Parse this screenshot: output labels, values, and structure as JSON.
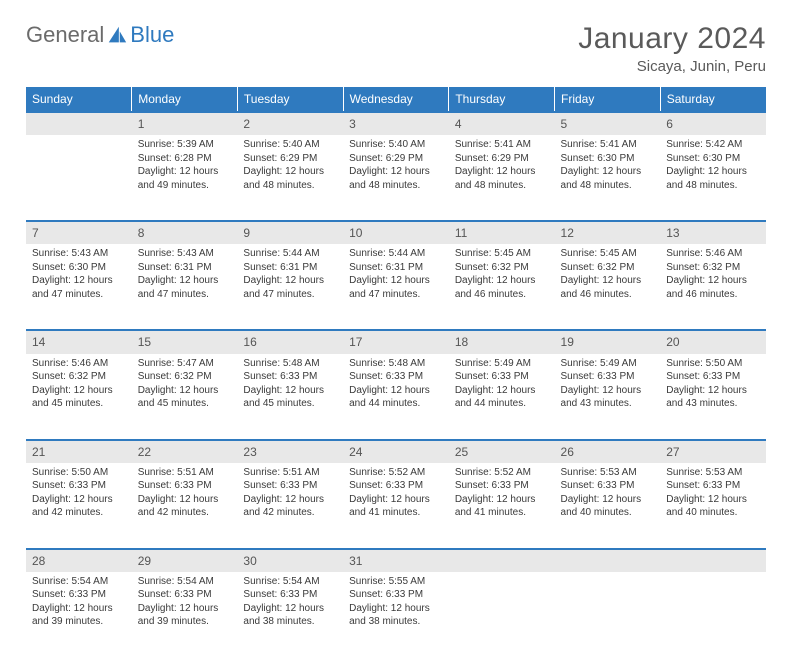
{
  "brand": {
    "part1": "General",
    "part2": "Blue"
  },
  "title": "January 2024",
  "location": "Sicaya, Junin, Peru",
  "colors": {
    "header_bg": "#2f7abf",
    "header_text": "#ffffff",
    "daynum_bg": "#e8e8e8",
    "body_text": "#3a3a3a",
    "border": "#2f7abf",
    "background": "#ffffff"
  },
  "day_headers": [
    "Sunday",
    "Monday",
    "Tuesday",
    "Wednesday",
    "Thursday",
    "Friday",
    "Saturday"
  ],
  "weeks": [
    {
      "nums": [
        "",
        "1",
        "2",
        "3",
        "4",
        "5",
        "6"
      ],
      "cells": [
        null,
        {
          "sunrise": "Sunrise: 5:39 AM",
          "sunset": "Sunset: 6:28 PM",
          "d1": "Daylight: 12 hours",
          "d2": "and 49 minutes."
        },
        {
          "sunrise": "Sunrise: 5:40 AM",
          "sunset": "Sunset: 6:29 PM",
          "d1": "Daylight: 12 hours",
          "d2": "and 48 minutes."
        },
        {
          "sunrise": "Sunrise: 5:40 AM",
          "sunset": "Sunset: 6:29 PM",
          "d1": "Daylight: 12 hours",
          "d2": "and 48 minutes."
        },
        {
          "sunrise": "Sunrise: 5:41 AM",
          "sunset": "Sunset: 6:29 PM",
          "d1": "Daylight: 12 hours",
          "d2": "and 48 minutes."
        },
        {
          "sunrise": "Sunrise: 5:41 AM",
          "sunset": "Sunset: 6:30 PM",
          "d1": "Daylight: 12 hours",
          "d2": "and 48 minutes."
        },
        {
          "sunrise": "Sunrise: 5:42 AM",
          "sunset": "Sunset: 6:30 PM",
          "d1": "Daylight: 12 hours",
          "d2": "and 48 minutes."
        }
      ]
    },
    {
      "nums": [
        "7",
        "8",
        "9",
        "10",
        "11",
        "12",
        "13"
      ],
      "cells": [
        {
          "sunrise": "Sunrise: 5:43 AM",
          "sunset": "Sunset: 6:30 PM",
          "d1": "Daylight: 12 hours",
          "d2": "and 47 minutes."
        },
        {
          "sunrise": "Sunrise: 5:43 AM",
          "sunset": "Sunset: 6:31 PM",
          "d1": "Daylight: 12 hours",
          "d2": "and 47 minutes."
        },
        {
          "sunrise": "Sunrise: 5:44 AM",
          "sunset": "Sunset: 6:31 PM",
          "d1": "Daylight: 12 hours",
          "d2": "and 47 minutes."
        },
        {
          "sunrise": "Sunrise: 5:44 AM",
          "sunset": "Sunset: 6:31 PM",
          "d1": "Daylight: 12 hours",
          "d2": "and 47 minutes."
        },
        {
          "sunrise": "Sunrise: 5:45 AM",
          "sunset": "Sunset: 6:32 PM",
          "d1": "Daylight: 12 hours",
          "d2": "and 46 minutes."
        },
        {
          "sunrise": "Sunrise: 5:45 AM",
          "sunset": "Sunset: 6:32 PM",
          "d1": "Daylight: 12 hours",
          "d2": "and 46 minutes."
        },
        {
          "sunrise": "Sunrise: 5:46 AM",
          "sunset": "Sunset: 6:32 PM",
          "d1": "Daylight: 12 hours",
          "d2": "and 46 minutes."
        }
      ]
    },
    {
      "nums": [
        "14",
        "15",
        "16",
        "17",
        "18",
        "19",
        "20"
      ],
      "cells": [
        {
          "sunrise": "Sunrise: 5:46 AM",
          "sunset": "Sunset: 6:32 PM",
          "d1": "Daylight: 12 hours",
          "d2": "and 45 minutes."
        },
        {
          "sunrise": "Sunrise: 5:47 AM",
          "sunset": "Sunset: 6:32 PM",
          "d1": "Daylight: 12 hours",
          "d2": "and 45 minutes."
        },
        {
          "sunrise": "Sunrise: 5:48 AM",
          "sunset": "Sunset: 6:33 PM",
          "d1": "Daylight: 12 hours",
          "d2": "and 45 minutes."
        },
        {
          "sunrise": "Sunrise: 5:48 AM",
          "sunset": "Sunset: 6:33 PM",
          "d1": "Daylight: 12 hours",
          "d2": "and 44 minutes."
        },
        {
          "sunrise": "Sunrise: 5:49 AM",
          "sunset": "Sunset: 6:33 PM",
          "d1": "Daylight: 12 hours",
          "d2": "and 44 minutes."
        },
        {
          "sunrise": "Sunrise: 5:49 AM",
          "sunset": "Sunset: 6:33 PM",
          "d1": "Daylight: 12 hours",
          "d2": "and 43 minutes."
        },
        {
          "sunrise": "Sunrise: 5:50 AM",
          "sunset": "Sunset: 6:33 PM",
          "d1": "Daylight: 12 hours",
          "d2": "and 43 minutes."
        }
      ]
    },
    {
      "nums": [
        "21",
        "22",
        "23",
        "24",
        "25",
        "26",
        "27"
      ],
      "cells": [
        {
          "sunrise": "Sunrise: 5:50 AM",
          "sunset": "Sunset: 6:33 PM",
          "d1": "Daylight: 12 hours",
          "d2": "and 42 minutes."
        },
        {
          "sunrise": "Sunrise: 5:51 AM",
          "sunset": "Sunset: 6:33 PM",
          "d1": "Daylight: 12 hours",
          "d2": "and 42 minutes."
        },
        {
          "sunrise": "Sunrise: 5:51 AM",
          "sunset": "Sunset: 6:33 PM",
          "d1": "Daylight: 12 hours",
          "d2": "and 42 minutes."
        },
        {
          "sunrise": "Sunrise: 5:52 AM",
          "sunset": "Sunset: 6:33 PM",
          "d1": "Daylight: 12 hours",
          "d2": "and 41 minutes."
        },
        {
          "sunrise": "Sunrise: 5:52 AM",
          "sunset": "Sunset: 6:33 PM",
          "d1": "Daylight: 12 hours",
          "d2": "and 41 minutes."
        },
        {
          "sunrise": "Sunrise: 5:53 AM",
          "sunset": "Sunset: 6:33 PM",
          "d1": "Daylight: 12 hours",
          "d2": "and 40 minutes."
        },
        {
          "sunrise": "Sunrise: 5:53 AM",
          "sunset": "Sunset: 6:33 PM",
          "d1": "Daylight: 12 hours",
          "d2": "and 40 minutes."
        }
      ]
    },
    {
      "nums": [
        "28",
        "29",
        "30",
        "31",
        "",
        "",
        ""
      ],
      "cells": [
        {
          "sunrise": "Sunrise: 5:54 AM",
          "sunset": "Sunset: 6:33 PM",
          "d1": "Daylight: 12 hours",
          "d2": "and 39 minutes."
        },
        {
          "sunrise": "Sunrise: 5:54 AM",
          "sunset": "Sunset: 6:33 PM",
          "d1": "Daylight: 12 hours",
          "d2": "and 39 minutes."
        },
        {
          "sunrise": "Sunrise: 5:54 AM",
          "sunset": "Sunset: 6:33 PM",
          "d1": "Daylight: 12 hours",
          "d2": "and 38 minutes."
        },
        {
          "sunrise": "Sunrise: 5:55 AM",
          "sunset": "Sunset: 6:33 PM",
          "d1": "Daylight: 12 hours",
          "d2": "and 38 minutes."
        },
        null,
        null,
        null
      ]
    }
  ]
}
